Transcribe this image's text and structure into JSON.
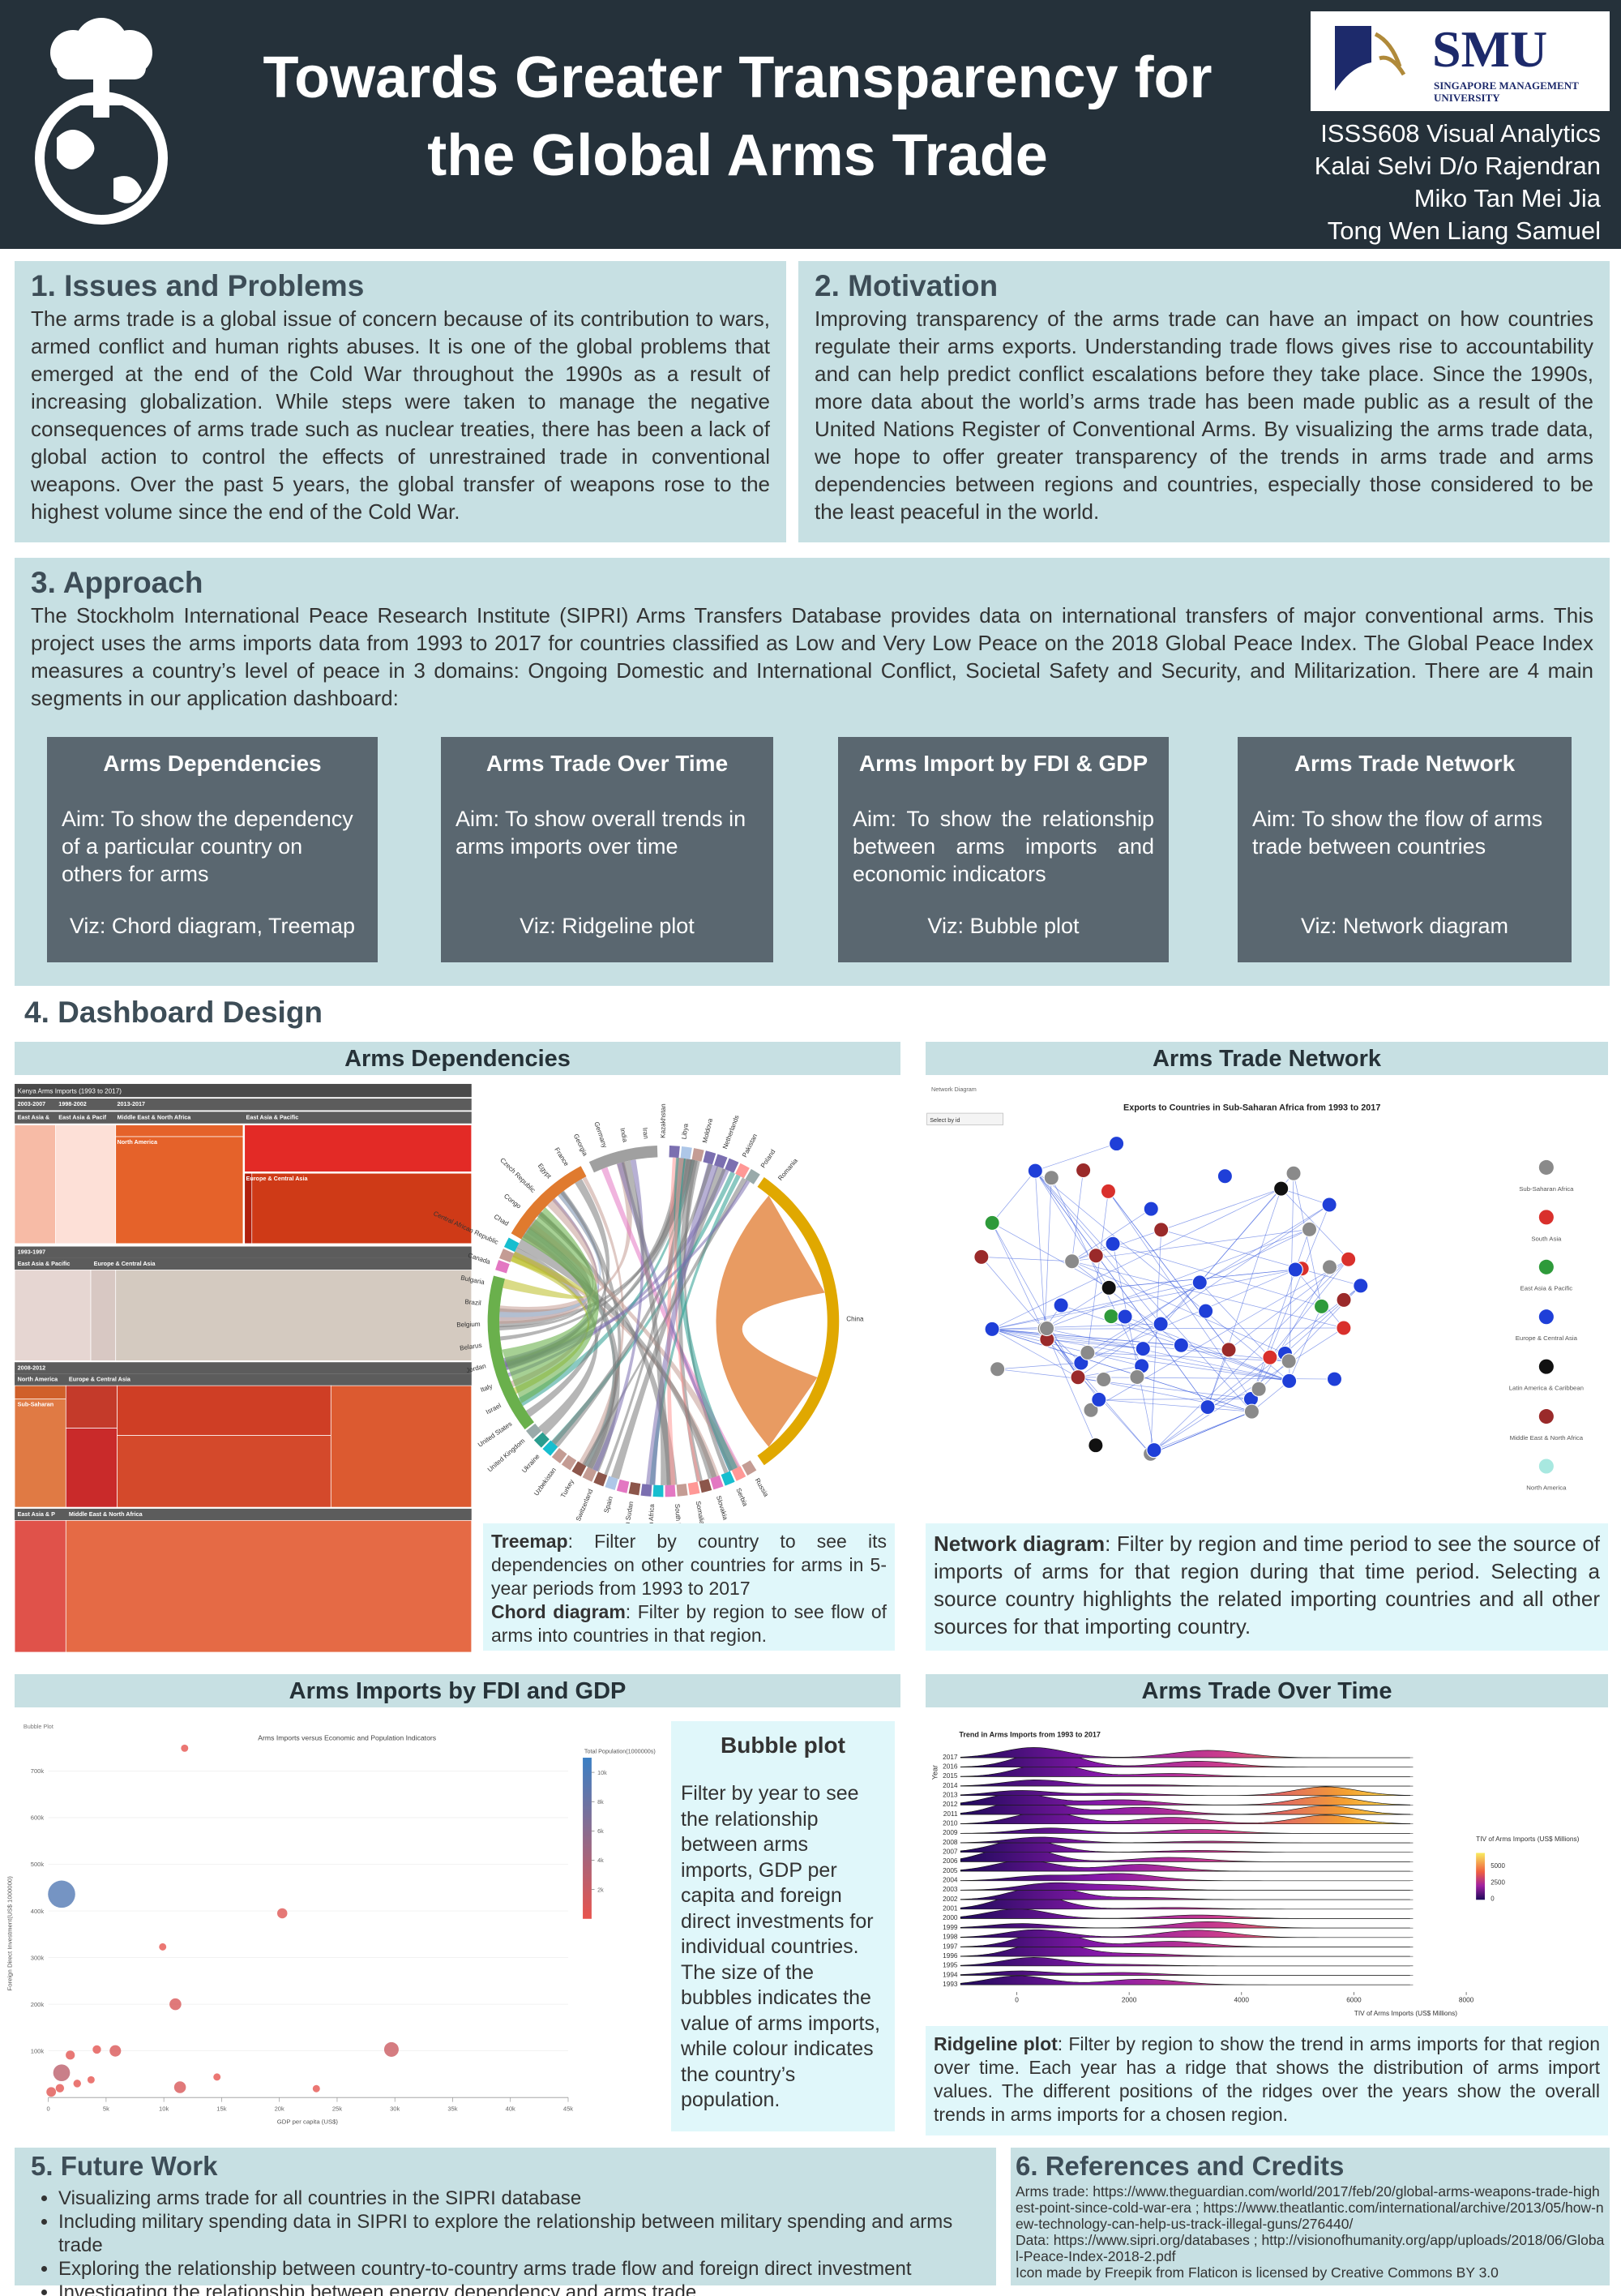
{
  "header": {
    "title": [
      "Towards Greater Transparency for",
      "the Global Arms Trade"
    ],
    "logo_name": "SMU",
    "logo_subtitle": [
      "SINGAPORE MANAGEMENT",
      "UNIVERSITY"
    ],
    "credits": [
      "ISSS608 Visual Analytics",
      "Kalai Selvi D/o Rajendran",
      "Miko Tan Mei Jia",
      "Tong Wen Liang Samuel"
    ]
  },
  "issues": {
    "heading": "1. Issues and Problems",
    "body": "The arms trade is a global issue of concern because of its contribution to wars, armed conflict and human rights abuses. It is one of the global problems that emerged at the end of the Cold War throughout the 1990s as a result of increasing globalization. While steps were taken to manage the negative consequences of arms trade such as nuclear treaties, there has been a lack of global action to control the effects of unrestrained trade in conventional weapons. Over the past 5 years, the global transfer of weapons rose to the highest volume since the end of the Cold War."
  },
  "motivation": {
    "heading": "2. Motivation",
    "body": "Improving transparency of the arms trade can have an impact on how countries regulate their arms exports. Understanding trade flows gives rise to accountability and can help predict conflict escalations before they take place. Since the 1990s, more data about the world’s arms trade has been made public as a result of the United Nations Register of Conventional Arms. By visualizing the arms trade data, we hope to offer greater transparency of the trends in arms trade and arms dependencies between regions and countries, especially those considered to be the least peaceful in the world."
  },
  "approach": {
    "heading": "3. Approach",
    "body": "The Stockholm International Peace Research Institute (SIPRI) Arms Transfers Database provides data on international transfers of major conventional arms. This project uses the arms imports data from 1993 to 2017 for countries classified as Low and Very Low Peace on the 2018 Global Peace Index. The Global Peace Index measures a country’s level of peace in 3 domains: Ongoing Domestic and International Conflict, Societal Safety and Security, and Militarization. There are 4 main segments in our application dashboard:",
    "segments": [
      {
        "title": "Arms Dependencies",
        "aim": "Aim: To show the dependency of a particular country on others for arms",
        "viz": "Viz: Chord diagram, Treemap"
      },
      {
        "title": "Arms Trade Over Time",
        "aim": "Aim: To show overall trends in arms imports over time",
        "viz": "Viz: Ridgeline plot"
      },
      {
        "title": "Arms Import by FDI & GDP",
        "aim": "Aim: To show the relationship between arms imports and economic indicators",
        "viz": "Viz: Bubble plot"
      },
      {
        "title": "Arms Trade Network",
        "aim": "Aim: To show the flow of arms trade between countries",
        "viz": "Viz: Network diagram"
      }
    ]
  },
  "dashboard": {
    "heading": "4. Dashboard Design",
    "dependencies": {
      "title": "Arms Dependencies",
      "treemap_title": "Kenya Arms Imports (1993 to 2017)",
      "treemap_labels": [
        "2003-2007",
        "1998-2002",
        "2013-2017",
        "East Asia &",
        "East Asia & Pacif",
        "Middle East & North Africa",
        "East Asia & Pacific",
        "North America",
        "Europe & Central Asia",
        "1993-1997",
        "East Asia & Pacific",
        "Europe & Central Asia",
        "2008-2012",
        "North America",
        "Europe & Central Asia",
        "Sub-Saharan",
        "East Asia & P",
        "Middle East & North Africa"
      ],
      "chord_labels": [
        "China",
        "Russia",
        "Serbia",
        "Slovakia",
        "Somalia",
        "South Korea",
        "South Africa",
        "South Sudan",
        "Spain",
        "Switzerland",
        "Turkey",
        "Uzbekistan",
        "Ukraine",
        "United Kingdom",
        "United States",
        "Israel",
        "Italy",
        "Jordan",
        "Belarus",
        "Belgium",
        "Brazil",
        "Bulgaria",
        "Canada",
        "Central African Republic",
        "Chad",
        "Congo",
        "Czech Republic",
        "Egypt",
        "France",
        "Georgia",
        "Germany",
        "India",
        "Iran",
        "Kazakhstan",
        "Libya",
        "Moldova",
        "Netherlands",
        "Pakistan",
        "Poland",
        "Romania"
      ],
      "caption": [
        {
          "term": "Treemap",
          "text": ": Filter by country to see its dependencies on other countries for arms in 5-year periods from 1993 to 2017"
        },
        {
          "term": "Chord diagram",
          "text": ": Filter by region to see flow of arms into countries in that region."
        }
      ]
    },
    "network": {
      "title": "Arms Trade Network",
      "image_label": "Network Diagram",
      "select": "Select by id",
      "chart_title": "Exports to Countries in Sub-Saharan Africa from 1993 to 2017",
      "legend": [
        {
          "name": "Sub-Saharan Africa",
          "color": "#8a8a8a"
        },
        {
          "name": "South Asia",
          "color": "#d9302c"
        },
        {
          "name": "East Asia & Pacific",
          "color": "#2e9a3a"
        },
        {
          "name": "Europe & Central Asia",
          "color": "#1f3fd8"
        },
        {
          "name": "Latin America & Caribbean",
          "color": "#111111"
        },
        {
          "name": "Middle East & North Africa",
          "color": "#9a2a2a"
        },
        {
          "name": "North America",
          "color": "#a8e8e0"
        }
      ],
      "caption": {
        "term": "Network diagram",
        "text": ": Filter by region and time period to see the source of imports of arms for that region during that time period. Selecting a source country highlights the related importing countries and all other sources for that importing country."
      }
    },
    "bubble": {
      "title": "Arms Imports by FDI and GDP",
      "image_label": "Bubble Plot",
      "chart_title": "Arms Imports versus Economic and Population Indicators",
      "x_label": "GDP per capita (US$)",
      "y_label": "Foreign Direct Investment(US$ 1000000)",
      "xlim": [
        0,
        45000
      ],
      "ylim": [
        0,
        760000
      ],
      "xticks": [
        0,
        {
          "value": 5000,
          "label": "5k"
        },
        {
          "value": 10000,
          "label": "10k"
        },
        {
          "value": 15000,
          "label": "15k"
        },
        {
          "value": 20000,
          "label": "20k"
        },
        {
          "value": 25000,
          "label": "25k"
        },
        {
          "value": 30000,
          "label": "30k"
        },
        {
          "value": 35000,
          "label": "35k"
        },
        {
          "value": 40000,
          "label": "40k"
        },
        {
          "value": 45000,
          "label": "45k"
        }
      ],
      "yticks": [
        {
          "value": 100000,
          "label": "100k"
        },
        {
          "value": 200000,
          "label": "200k"
        },
        {
          "value": 300000,
          "label": "300k"
        },
        {
          "value": 400000,
          "label": "400k"
        },
        {
          "value": 500000,
          "label": "500k"
        },
        {
          "value": 600000,
          "label": "600k"
        },
        {
          "value": 700000,
          "label": "700k"
        }
      ],
      "points": {
        "x": [
          1150,
          20250,
          11800,
          9900,
          11000,
          29700,
          5800,
          1150,
          1900,
          11400,
          14600,
          23200,
          3700,
          250,
          4200,
          2500,
          1000
        ],
        "y": [
          436000,
          395000,
          749000,
          323000,
          200000,
          103000,
          100000,
          53000,
          91000,
          22000,
          44000,
          19000,
          38000,
          12000,
          103000,
          30000,
          20000
        ],
        "population": [
          9500,
          600,
          150,
          150,
          1000,
          1900,
          900,
          2800,
          400,
          1000,
          150,
          150,
          150,
          500,
          300,
          200,
          300
        ]
      },
      "legend_title": "Total Population(1000000s)",
      "legend_lim": [
        0,
        11000
      ],
      "legend_ticks": [
        {
          "value": 10000,
          "label": "10k"
        },
        {
          "value": 8000,
          "label": "8k"
        },
        {
          "value": 6000,
          "label": "6k"
        },
        {
          "value": 4000,
          "label": "4k"
        },
        {
          "value": 2000,
          "label": "2k"
        }
      ],
      "caption_title": "Bubble plot",
      "caption": "Filter by year to see the relationship between arms imports, GDP per capita and foreign direct investments for individual countries. The size of the bubbles indicates the value of arms imports, while colour indicates the country’s population."
    },
    "ridgeline": {
      "title": "Arms Trade Over Time",
      "chart_title": "Trend in Arms Imports from 1993 to 2017",
      "y_label": "Year",
      "years": [
        "2017",
        "2016",
        "2015",
        "2014",
        "2013",
        "2012",
        "2011",
        "2010",
        "2009",
        "2008",
        "2007",
        "2006",
        "2005",
        "2004",
        "2003",
        "2002",
        "2001",
        "2000",
        "1999",
        "1998",
        "1997",
        "1996",
        "1995",
        "1994",
        "1993"
      ],
      "xlim": [
        -1000,
        8200
      ],
      "xticks": [
        0,
        2000,
        4000,
        6000,
        8000
      ],
      "x_label": "TIV of Arms Imports (US$ Millions)",
      "legend_title": "TIV of Arms Imports (US$ Millions)",
      "legend_lim": [
        -200,
        7000
      ],
      "legend_ticks": [
        5000,
        2500,
        0
      ],
      "caption": {
        "term": "Ridgeline plot",
        "text": ": Filter by region to show the trend in arms imports for that region over time. Each year has a ridge that shows the distribution of arms import values. The different positions of the ridges over the years show the overall trends in arms imports for a chosen region."
      }
    }
  },
  "future": {
    "heading": "5. Future Work",
    "items": [
      "Visualizing arms trade for all countries in the SIPRI database",
      "Including military spending data in SIPRI to explore the relationship between military spending and arms trade",
      "Exploring the relationship between country-to-country arms trade flow and foreign direct investment",
      "Investigating the relationship between energy dependency and arms trade"
    ]
  },
  "references": {
    "heading": "6. References and Credits",
    "lines": [
      "Arms trade: https://www.theguardian.com/world/2017/feb/20/global-arms-weapons-trade-highest-point-since-cold-war-era ; https://www.theatlantic.com/international/archive/2013/05/how-new-technology-can-help-us-track-illegal-guns/276440/",
      "Data: https://www.sipri.org/databases ; http://visionofhumanity.org/app/uploads/2018/06/Global-Peace-Index-2018-2.pdf",
      "Icon made by Freepik from Flaticon is licensed by Creative Commons BY 3.0"
    ]
  }
}
